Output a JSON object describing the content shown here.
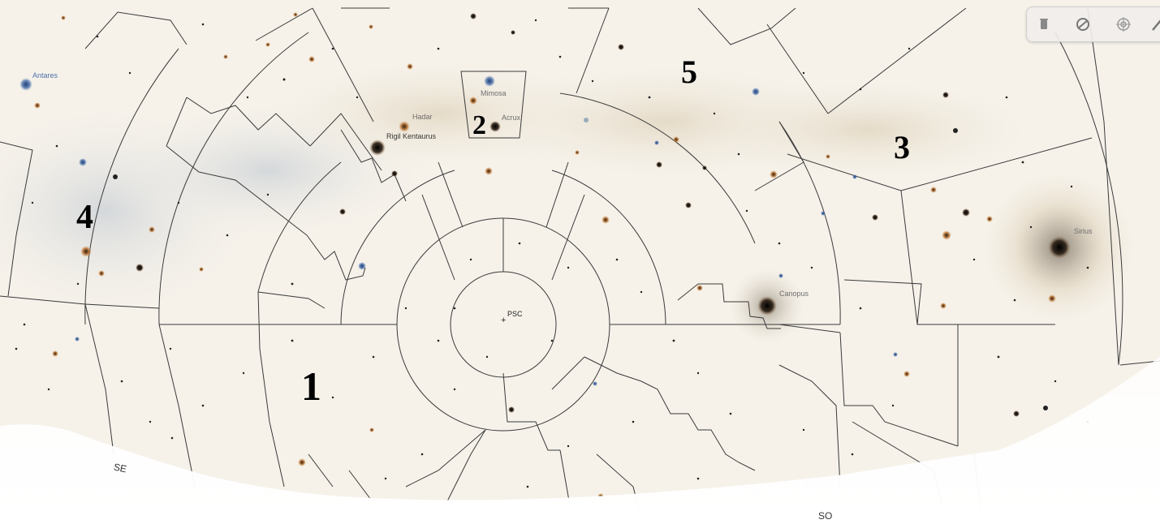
{
  "regions": [
    {
      "id": "region-1",
      "label": "1"
    },
    {
      "id": "region-2",
      "label": "2"
    },
    {
      "id": "region-3",
      "label": "3"
    },
    {
      "id": "region-4",
      "label": "4"
    },
    {
      "id": "region-5",
      "label": "5"
    }
  ],
  "stars": {
    "antares": "Antares",
    "hadar": "Hadar",
    "rigil": "Rigil Kentaurus",
    "mimosa": "Mimosa",
    "acrux": "Acrux",
    "sirius": "Sirius",
    "canopus": "Canopus"
  },
  "center_label": "PSC",
  "compass": {
    "se": "SE",
    "so": "SO"
  },
  "toolbar": {
    "icons": [
      "trash-icon",
      "no-view-icon",
      "target-icon",
      "pencil-icon"
    ]
  },
  "colors": {
    "paper": "#f6f2ea",
    "boundary": "#3a3a3a",
    "region_label": "#000000",
    "star_label": "#6e6e6e",
    "blue_star": "#4a6fa8",
    "orange_star": "#b46d2c"
  }
}
